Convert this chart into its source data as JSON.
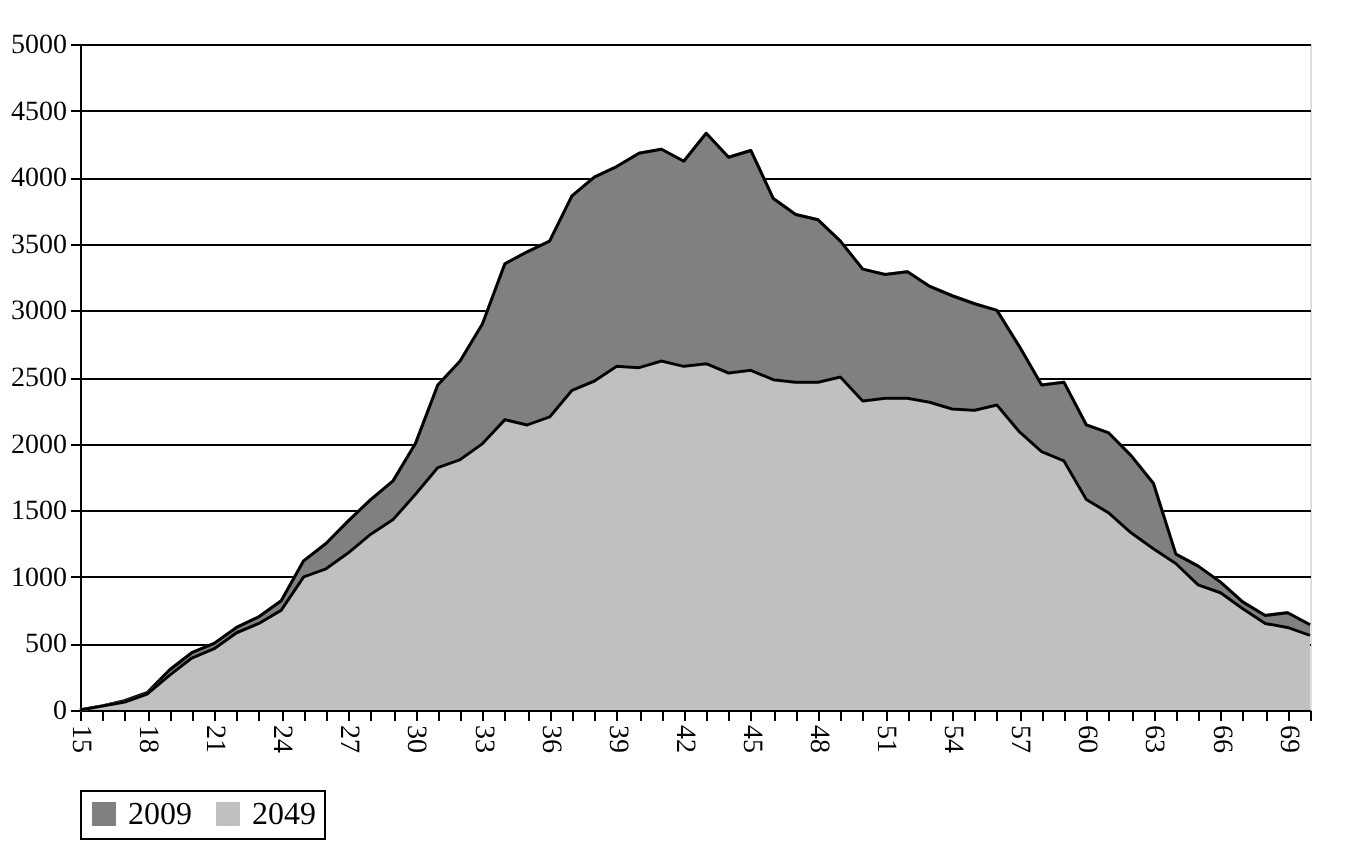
{
  "chart_data": {
    "type": "area",
    "categories": [
      "15",
      null,
      null,
      "18",
      null,
      null,
      "21",
      null,
      null,
      "24",
      null,
      null,
      "27",
      null,
      null,
      "30",
      null,
      null,
      "33",
      null,
      null,
      "36",
      null,
      null,
      "39",
      null,
      null,
      "42",
      null,
      null,
      "45",
      null,
      null,
      "48",
      null,
      null,
      "51",
      null,
      null,
      "54",
      null,
      null,
      "57",
      null,
      null,
      "60",
      null,
      null,
      "63",
      null,
      null,
      "66",
      null,
      null,
      "69",
      null
    ],
    "series": [
      {
        "name": "2009",
        "color": "#808080",
        "values": [
          0,
          30,
          70,
          130,
          300,
          430,
          500,
          620,
          700,
          820,
          1120,
          1250,
          1420,
          1580,
          1720,
          2000,
          2440,
          2620,
          2900,
          3350,
          3440,
          3520,
          3860,
          4000,
          4080,
          4180,
          4210,
          4120,
          4330,
          4150,
          4200,
          3840,
          3720,
          3680,
          3520,
          3310,
          3270,
          3290,
          3180,
          3110,
          3050,
          3000,
          2730,
          2440,
          2460,
          2140,
          2080,
          1910,
          1700,
          1170,
          1080,
          960,
          810,
          710,
          730,
          640
        ]
      },
      {
        "name": "2049",
        "color": "#c0c0c0",
        "values": [
          0,
          30,
          60,
          120,
          260,
          390,
          460,
          580,
          650,
          750,
          1000,
          1060,
          1180,
          1320,
          1430,
          1620,
          1820,
          1880,
          2000,
          2180,
          2140,
          2200,
          2400,
          2470,
          2580,
          2570,
          2620,
          2580,
          2600,
          2530,
          2550,
          2480,
          2460,
          2460,
          2500,
          2320,
          2340,
          2340,
          2310,
          2260,
          2250,
          2290,
          2090,
          1940,
          1870,
          1580,
          1480,
          1330,
          1210,
          1100,
          940,
          880,
          760,
          650,
          620,
          560
        ]
      }
    ],
    "ylim": [
      0,
      5000
    ],
    "yticks": [
      0,
      500,
      1000,
      1500,
      2000,
      2500,
      3000,
      3500,
      4000,
      4500,
      5000
    ],
    "grid": "y",
    "legend": "bottom"
  }
}
